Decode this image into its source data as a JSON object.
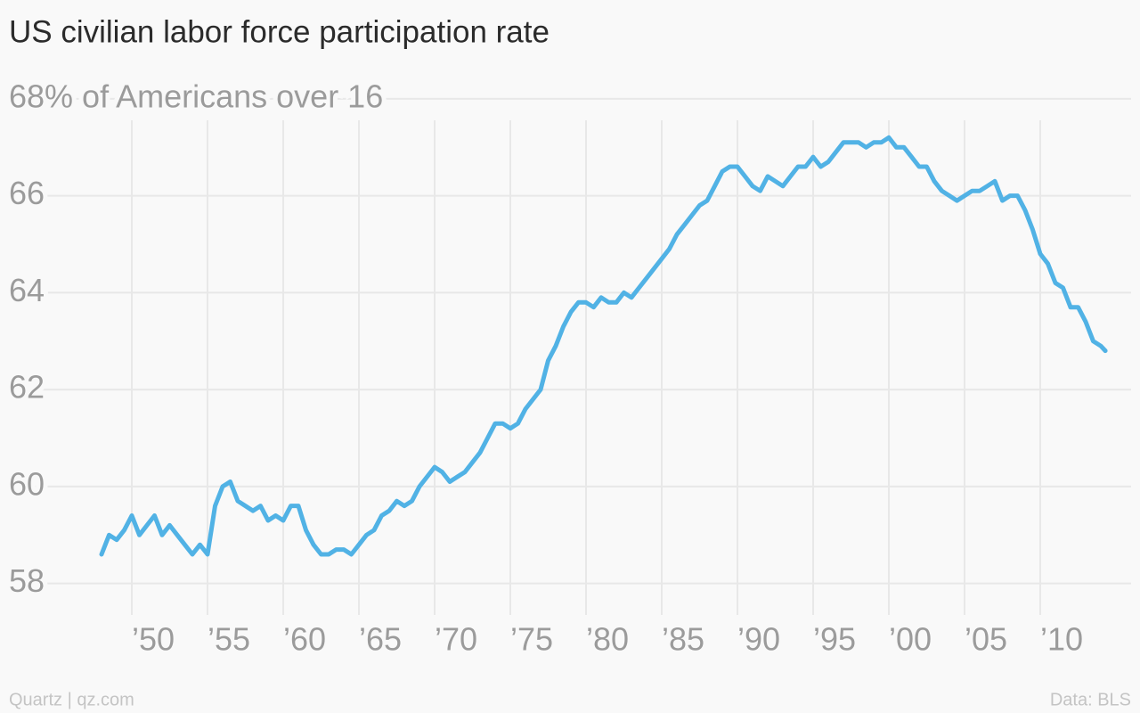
{
  "chart_data": {
    "type": "line",
    "title": "US civilian labor force participation rate",
    "source": "Data: BLS",
    "credit": "Quartz | qz.com",
    "x": [
      1948.0,
      1948.5,
      1949.0,
      1949.5,
      1950.0,
      1950.5,
      1951.0,
      1951.5,
      1952.0,
      1952.5,
      1953.0,
      1953.5,
      1954.0,
      1954.5,
      1955.0,
      1955.5,
      1956.0,
      1956.5,
      1957.0,
      1957.5,
      1958.0,
      1958.5,
      1959.0,
      1959.5,
      1960.0,
      1960.5,
      1961.0,
      1961.5,
      1962.0,
      1962.5,
      1963.0,
      1963.5,
      1964.0,
      1964.5,
      1965.0,
      1965.5,
      1966.0,
      1966.5,
      1967.0,
      1967.5,
      1968.0,
      1968.5,
      1969.0,
      1969.5,
      1970.0,
      1970.5,
      1971.0,
      1971.5,
      1972.0,
      1972.5,
      1973.0,
      1973.5,
      1974.0,
      1974.5,
      1975.0,
      1975.5,
      1976.0,
      1976.5,
      1977.0,
      1977.5,
      1978.0,
      1978.5,
      1979.0,
      1979.5,
      1980.0,
      1980.5,
      1981.0,
      1981.5,
      1982.0,
      1982.5,
      1983.0,
      1983.5,
      1984.0,
      1984.5,
      1985.0,
      1985.5,
      1986.0,
      1986.5,
      1987.0,
      1987.5,
      1988.0,
      1988.5,
      1989.0,
      1989.5,
      1990.0,
      1990.5,
      1991.0,
      1991.5,
      1992.0,
      1992.5,
      1993.0,
      1993.5,
      1994.0,
      1994.5,
      1995.0,
      1995.5,
      1996.0,
      1996.5,
      1997.0,
      1997.5,
      1998.0,
      1998.5,
      1999.0,
      1999.5,
      2000.0,
      2000.5,
      2001.0,
      2001.5,
      2002.0,
      2002.5,
      2003.0,
      2003.5,
      2004.0,
      2004.5,
      2005.0,
      2005.5,
      2006.0,
      2006.5,
      2007.0,
      2007.5,
      2008.0,
      2008.5,
      2009.0,
      2009.5,
      2010.0,
      2010.5,
      2011.0,
      2011.5,
      2012.0,
      2012.5,
      2013.0,
      2013.5,
      2014.0,
      2014.3
    ],
    "series": [
      {
        "name": "Participation rate",
        "color": "#51b2e5",
        "values": [
          58.6,
          59.0,
          58.9,
          59.1,
          59.4,
          59.0,
          59.2,
          59.4,
          59.0,
          59.2,
          59.0,
          58.8,
          58.6,
          58.8,
          58.6,
          59.6,
          60.0,
          60.1,
          59.7,
          59.6,
          59.5,
          59.6,
          59.3,
          59.4,
          59.3,
          59.6,
          59.6,
          59.1,
          58.8,
          58.6,
          58.6,
          58.7,
          58.7,
          58.6,
          58.8,
          59.0,
          59.1,
          59.4,
          59.5,
          59.7,
          59.6,
          59.7,
          60.0,
          60.2,
          60.4,
          60.3,
          60.1,
          60.2,
          60.3,
          60.5,
          60.7,
          61.0,
          61.3,
          61.3,
          61.2,
          61.3,
          61.6,
          61.8,
          62.0,
          62.6,
          62.9,
          63.3,
          63.6,
          63.8,
          63.8,
          63.7,
          63.9,
          63.8,
          63.8,
          64.0,
          63.9,
          64.1,
          64.3,
          64.5,
          64.7,
          64.9,
          65.2,
          65.4,
          65.6,
          65.8,
          65.9,
          66.2,
          66.5,
          66.6,
          66.6,
          66.4,
          66.2,
          66.1,
          66.4,
          66.3,
          66.2,
          66.4,
          66.6,
          66.6,
          66.8,
          66.6,
          66.7,
          66.9,
          67.1,
          67.1,
          67.1,
          67.0,
          67.1,
          67.1,
          67.2,
          67.0,
          67.0,
          66.8,
          66.6,
          66.6,
          66.3,
          66.1,
          66.0,
          65.9,
          66.0,
          66.1,
          66.1,
          66.2,
          66.3,
          65.9,
          66.0,
          66.0,
          65.7,
          65.3,
          64.8,
          64.6,
          64.2,
          64.1,
          63.7,
          63.7,
          63.4,
          63.0,
          62.9,
          62.8
        ]
      }
    ],
    "xlim": [
      1947,
      2015.5
    ],
    "ylim": [
      57.35,
      68.2
    ],
    "xticks": [
      {
        "value": 1950,
        "label": "’50"
      },
      {
        "value": 1955,
        "label": "’55"
      },
      {
        "value": 1960,
        "label": "’60"
      },
      {
        "value": 1965,
        "label": "’65"
      },
      {
        "value": 1970,
        "label": "’70"
      },
      {
        "value": 1975,
        "label": "’75"
      },
      {
        "value": 1980,
        "label": "’80"
      },
      {
        "value": 1985,
        "label": "’85"
      },
      {
        "value": 1990,
        "label": "’90"
      },
      {
        "value": 1995,
        "label": "’95"
      },
      {
        "value": 2000,
        "label": "’00"
      },
      {
        "value": 2005,
        "label": "’05"
      },
      {
        "value": 2010,
        "label": "’10"
      }
    ],
    "yticks": [
      58,
      60,
      62,
      64,
      66,
      {
        "value": 68,
        "label": "68% of Americans over 16"
      }
    ],
    "grid": true
  }
}
